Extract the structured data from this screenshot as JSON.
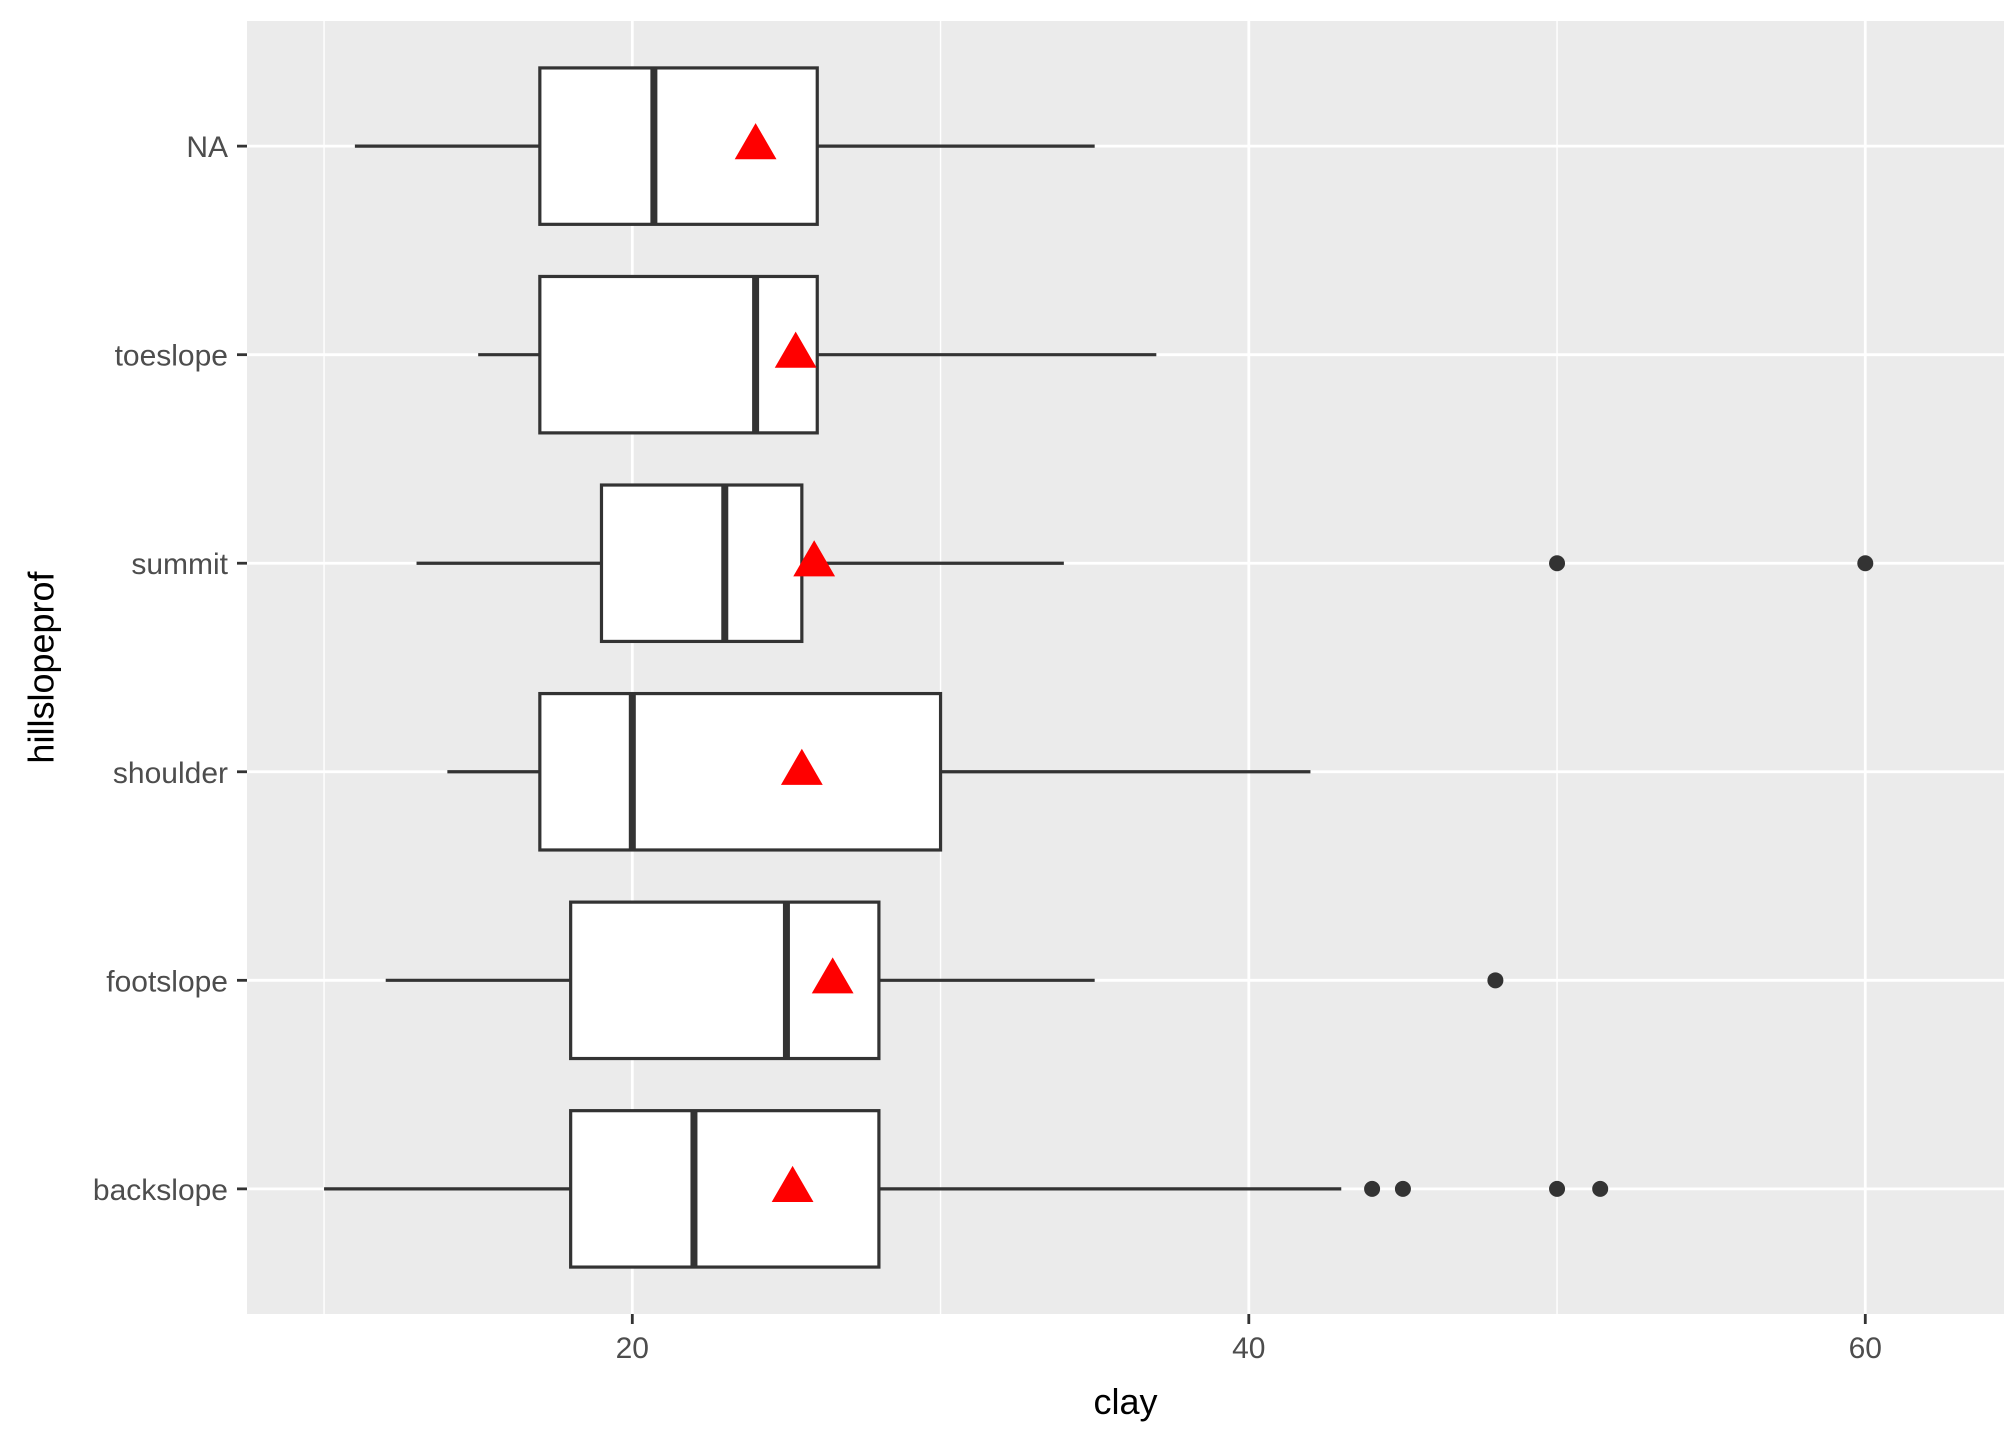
{
  "chart_data": {
    "type": "boxplot",
    "orientation": "horizontal",
    "xlabel": "clay",
    "ylabel": "hillslopeprof",
    "xlim": [
      7.5,
      64.5
    ],
    "xticks": [
      20,
      40,
      60
    ],
    "grid": true,
    "legend": "none",
    "categories": [
      "backslope",
      "footslope",
      "shoulder",
      "summit",
      "toeslope",
      "NA"
    ],
    "boxes": [
      {
        "category": "backslope",
        "whisker_low": 10,
        "q1": 18,
        "median": 22,
        "q3": 28,
        "whisker_high": 43,
        "mean": 25.2,
        "outliers": [
          44,
          45,
          50,
          51.4
        ]
      },
      {
        "category": "footslope",
        "whisker_low": 12,
        "q1": 18,
        "median": 25,
        "q3": 28,
        "whisker_high": 35,
        "mean": 26.5,
        "outliers": [
          48
        ]
      },
      {
        "category": "shoulder",
        "whisker_low": 14,
        "q1": 17,
        "median": 20,
        "q3": 30,
        "whisker_high": 42,
        "mean": 25.5,
        "outliers": []
      },
      {
        "category": "summit",
        "whisker_low": 13,
        "q1": 19,
        "median": 23,
        "q3": 25.5,
        "whisker_high": 34,
        "mean": 25.9,
        "outliers": [
          50,
          60
        ]
      },
      {
        "category": "toeslope",
        "whisker_low": 15,
        "q1": 17,
        "median": 24,
        "q3": 26,
        "whisker_high": 37,
        "mean": 25.3,
        "outliers": []
      },
      {
        "category": "NA",
        "whisker_low": 11,
        "q1": 17,
        "median": 20.7,
        "q3": 26,
        "whisker_high": 35,
        "mean": 24,
        "outliers": []
      }
    ],
    "colors": {
      "panel_bg": "#ebebeb",
      "grid": "#ffffff",
      "box_fill": "#ffffff",
      "box_stroke": "#333333",
      "mean_marker": "#ff0000",
      "outlier": "#333333",
      "tick_text": "#4d4d4d",
      "title_text": "#000000"
    }
  }
}
